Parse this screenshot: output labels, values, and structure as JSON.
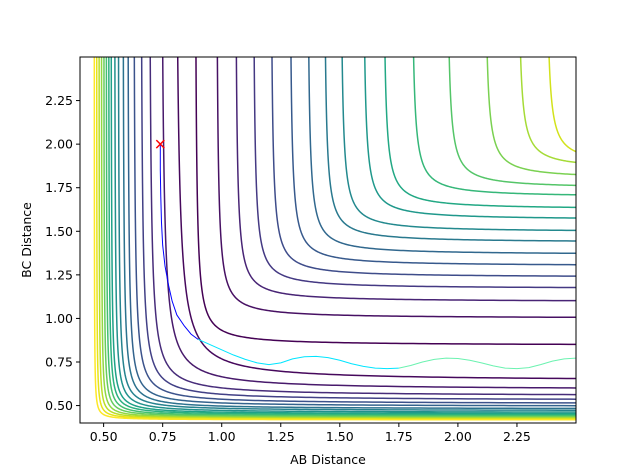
{
  "chart_data": {
    "type": "contour",
    "title": "",
    "xlabel": "AB Distance",
    "ylabel": "BC Distance",
    "xlim": [
      0.4,
      2.5
    ],
    "ylim": [
      0.4,
      2.5
    ],
    "xticks": [
      0.5,
      0.75,
      1.0,
      1.25,
      1.5,
      1.75,
      2.0,
      2.25
    ],
    "xtick_labels": [
      "0.50",
      "0.75",
      "1.00",
      "1.25",
      "1.50",
      "1.75",
      "2.00",
      "2.25"
    ],
    "yticks": [
      0.5,
      0.75,
      1.0,
      1.25,
      1.5,
      1.75,
      2.0,
      2.25
    ],
    "ytick_labels": [
      "0.50",
      "0.75",
      "1.00",
      "1.25",
      "1.50",
      "1.75",
      "2.00",
      "2.25"
    ],
    "colormap": "viridis",
    "grid": false,
    "contour_levels": [
      {
        "color": "#440154",
        "asymptote_x": 0.885,
        "asymptote_y": 0.845,
        "sharpness": 0.1
      },
      {
        "color": "#46085c",
        "asymptote_x": 0.8,
        "asymptote_y": 0.64,
        "sharpness": 0.16
      },
      {
        "color": "#471063",
        "asymptote_x": 0.975,
        "asymptote_y": 1.0,
        "sharpness": 0.1
      },
      {
        "color": "#481a6c",
        "asymptote_x": 0.74,
        "asymptote_y": 0.59,
        "sharpness": 0.14
      },
      {
        "color": "#482475",
        "asymptote_x": 1.055,
        "asymptote_y": 1.095,
        "sharpness": 0.1
      },
      {
        "color": "#472c7a",
        "asymptote_x": 0.69,
        "asymptote_y": 0.555,
        "sharpness": 0.12
      },
      {
        "color": "#443983",
        "asymptote_x": 1.13,
        "asymptote_y": 1.17,
        "sharpness": 0.1
      },
      {
        "color": "#424086",
        "asymptote_x": 0.655,
        "asymptote_y": 0.53,
        "sharpness": 0.11
      },
      {
        "color": "#3e4c8a",
        "asymptote_x": 1.205,
        "asymptote_y": 1.235,
        "sharpness": 0.1
      },
      {
        "color": "#3b528b",
        "asymptote_x": 0.625,
        "asymptote_y": 0.51,
        "sharpness": 0.1
      },
      {
        "color": "#37598c",
        "asymptote_x": 1.285,
        "asymptote_y": 1.3,
        "sharpness": 0.1
      },
      {
        "color": "#33638d",
        "asymptote_x": 0.6,
        "asymptote_y": 0.495,
        "sharpness": 0.09
      },
      {
        "color": "#31688e",
        "asymptote_x": 1.36,
        "asymptote_y": 1.365,
        "sharpness": 0.1
      },
      {
        "color": "#2c728e",
        "asymptote_x": 0.58,
        "asymptote_y": 0.48,
        "sharpness": 0.085
      },
      {
        "color": "#29798e",
        "asymptote_x": 1.43,
        "asymptote_y": 1.435,
        "sharpness": 0.1
      },
      {
        "color": "#26828e",
        "asymptote_x": 0.56,
        "asymptote_y": 0.47,
        "sharpness": 0.08
      },
      {
        "color": "#23898e",
        "asymptote_x": 1.5,
        "asymptote_y": 1.495,
        "sharpness": 0.1
      },
      {
        "color": "#21918c",
        "asymptote_x": 0.545,
        "asymptote_y": 0.46,
        "sharpness": 0.075
      },
      {
        "color": "#1f988b",
        "asymptote_x": 1.595,
        "asymptote_y": 1.565,
        "sharpness": 0.1
      },
      {
        "color": "#1fa188",
        "asymptote_x": 0.53,
        "asymptote_y": 0.452,
        "sharpness": 0.07
      },
      {
        "color": "#22a884",
        "asymptote_x": 1.68,
        "asymptote_y": 1.625,
        "sharpness": 0.1
      },
      {
        "color": "#2ab07f",
        "asymptote_x": 0.52,
        "asymptote_y": 0.446,
        "sharpness": 0.065
      },
      {
        "color": "#35b779",
        "asymptote_x": 1.8,
        "asymptote_y": 1.695,
        "sharpness": 0.1
      },
      {
        "color": "#44bf70",
        "asymptote_x": 0.51,
        "asymptote_y": 0.44,
        "sharpness": 0.06
      },
      {
        "color": "#54c568",
        "asymptote_x": 1.95,
        "asymptote_y": 1.745,
        "sharpness": 0.1
      },
      {
        "color": "#67cc5c",
        "asymptote_x": 0.5,
        "asymptote_y": 0.435,
        "sharpness": 0.055
      },
      {
        "color": "#7ad151",
        "asymptote_x": 2.11,
        "asymptote_y": 1.8,
        "sharpness": 0.1
      },
      {
        "color": "#90d743",
        "asymptote_x": 0.49,
        "asymptote_y": 0.43,
        "sharpness": 0.05
      },
      {
        "color": "#a5db36",
        "asymptote_x": 2.25,
        "asymptote_y": 1.855,
        "sharpness": 0.1
      },
      {
        "color": "#bade28",
        "asymptote_x": 0.48,
        "asymptote_y": 0.426,
        "sharpness": 0.045
      },
      {
        "color": "#d2e21b",
        "asymptote_x": 2.37,
        "asymptote_y": 1.88,
        "sharpness": 0.1
      },
      {
        "color": "#e5e419",
        "asymptote_x": 0.47,
        "asymptote_y": 0.422,
        "sharpness": 0.04
      },
      {
        "color": "#fde725",
        "asymptote_x": 0.46,
        "asymptote_y": 0.418,
        "sharpness": 0.035
      }
    ],
    "trajectories": [
      {
        "name": "",
        "color": "#0000ff",
        "x": [
          0.74,
          0.74,
          0.742,
          0.745,
          0.75,
          0.76,
          0.775,
          0.79,
          0.81,
          0.84,
          0.87,
          0.9
        ],
        "y": [
          2.0,
          1.85,
          1.7,
          1.55,
          1.42,
          1.3,
          1.19,
          1.1,
          1.02,
          0.96,
          0.91,
          0.88
        ]
      },
      {
        "name": "",
        "color": "#00e5ff",
        "x": [
          0.9,
          0.95,
          1.0,
          1.05,
          1.1,
          1.15,
          1.2,
          1.25,
          1.3,
          1.35,
          1.4,
          1.45,
          1.5,
          1.55,
          1.6,
          1.65,
          1.7,
          1.75
        ],
        "y": [
          0.88,
          0.85,
          0.82,
          0.79,
          0.765,
          0.745,
          0.735,
          0.745,
          0.768,
          0.78,
          0.782,
          0.775,
          0.76,
          0.74,
          0.725,
          0.715,
          0.712,
          0.715
        ]
      },
      {
        "name": "",
        "color": "#6bf2b0",
        "x": [
          1.75,
          1.8,
          1.85,
          1.9,
          1.95,
          2.0,
          2.05,
          2.1,
          2.15,
          2.2,
          2.25,
          2.3,
          2.35,
          2.4,
          2.45,
          2.5
        ],
        "y": [
          0.715,
          0.73,
          0.75,
          0.765,
          0.772,
          0.77,
          0.76,
          0.745,
          0.728,
          0.715,
          0.712,
          0.718,
          0.735,
          0.755,
          0.768,
          0.772
        ]
      }
    ],
    "markers": [
      {
        "x": 0.74,
        "y": 2.0,
        "symbol": "x",
        "color": "#ff0000"
      }
    ]
  }
}
